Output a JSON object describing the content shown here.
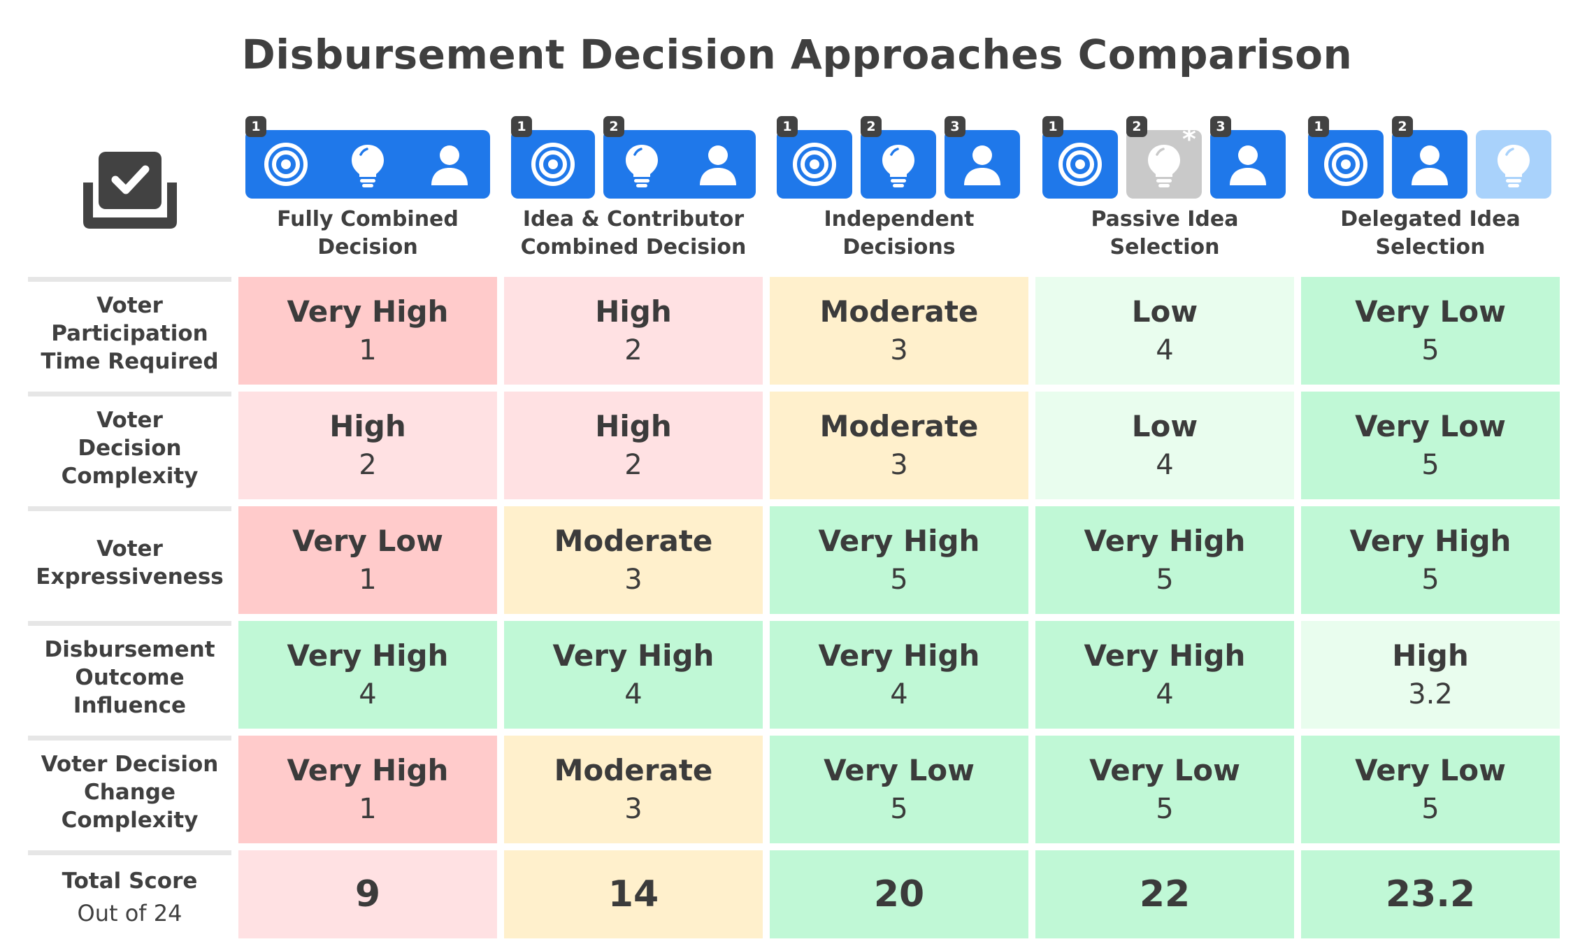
{
  "title": "Disbursement Decision Approaches Comparison",
  "colors": {
    "icon_tile_blue": "#1f78ea",
    "icon_tile_gray": "#c9c9c9",
    "icon_tile_light": "#a9d2fb",
    "badge": "#424242",
    "very_low_score_red": "#ffcbcb",
    "low_score_pink": "#ffe1e3",
    "moderate_yellow": "#fff0cc",
    "high_score_light_green": "#e9fdee",
    "very_high_score_green": "#c0f8d6"
  },
  "corner_icon": "checkbox-tray-icon",
  "columns": [
    {
      "label_line1": "Fully Combined",
      "label_line2": "Decision",
      "tiles": [
        {
          "badge": "1",
          "style": "blue",
          "icons": [
            "target-icon",
            "lightbulb-icon",
            "person-icon"
          ]
        }
      ]
    },
    {
      "label_line1": "Idea & Contributor",
      "label_line2": "Combined Decision",
      "tiles": [
        {
          "badge": "1",
          "style": "blue",
          "icons": [
            "target-icon"
          ]
        },
        {
          "badge": "2",
          "style": "blue",
          "icons": [
            "lightbulb-icon",
            "person-icon"
          ]
        }
      ]
    },
    {
      "label_line1": "Independent",
      "label_line2": "Decisions",
      "tiles": [
        {
          "badge": "1",
          "style": "blue",
          "icons": [
            "target-icon"
          ]
        },
        {
          "badge": "2",
          "style": "blue",
          "icons": [
            "lightbulb-icon"
          ]
        },
        {
          "badge": "3",
          "style": "blue",
          "icons": [
            "person-icon"
          ]
        }
      ]
    },
    {
      "label_line1": "Passive Idea",
      "label_line2": "Selection",
      "tiles": [
        {
          "badge": "1",
          "style": "blue",
          "icons": [
            "target-icon"
          ]
        },
        {
          "badge": "2",
          "style": "gray",
          "icons": [
            "lightbulb-icon"
          ],
          "asterisk": "*"
        },
        {
          "badge": "3",
          "style": "blue",
          "icons": [
            "person-icon"
          ]
        }
      ]
    },
    {
      "label_line1": "Delegated Idea",
      "label_line2": "Selection",
      "tiles": [
        {
          "badge": "1",
          "style": "blue",
          "icons": [
            "target-icon"
          ]
        },
        {
          "badge": "2",
          "style": "blue",
          "icons": [
            "person-icon"
          ]
        },
        {
          "badge": "",
          "style": "light",
          "icons": [
            "lightbulb-icon"
          ]
        }
      ]
    }
  ],
  "rows": [
    {
      "label_lines": [
        "Voter",
        "Participation",
        "Time Required"
      ],
      "cells": [
        {
          "rating": "Very High",
          "score": "1",
          "color": "#ffcbcb"
        },
        {
          "rating": "High",
          "score": "2",
          "color": "#ffe1e3"
        },
        {
          "rating": "Moderate",
          "score": "3",
          "color": "#fff0cc"
        },
        {
          "rating": "Low",
          "score": "4",
          "color": "#e9fdee"
        },
        {
          "rating": "Very Low",
          "score": "5",
          "color": "#c0f8d6"
        }
      ]
    },
    {
      "label_lines": [
        "Voter",
        "Decision",
        "Complexity"
      ],
      "cells": [
        {
          "rating": "High",
          "score": "2",
          "color": "#ffe1e3"
        },
        {
          "rating": "High",
          "score": "2",
          "color": "#ffe1e3"
        },
        {
          "rating": "Moderate",
          "score": "3",
          "color": "#fff0cc"
        },
        {
          "rating": "Low",
          "score": "4",
          "color": "#e9fdee"
        },
        {
          "rating": "Very Low",
          "score": "5",
          "color": "#c0f8d6"
        }
      ]
    },
    {
      "label_lines": [
        "Voter",
        "Expressiveness"
      ],
      "cells": [
        {
          "rating": "Very Low",
          "score": "1",
          "color": "#ffcbcb"
        },
        {
          "rating": "Moderate",
          "score": "3",
          "color": "#fff0cc"
        },
        {
          "rating": "Very High",
          "score": "5",
          "color": "#c0f8d6"
        },
        {
          "rating": "Very High",
          "score": "5",
          "color": "#c0f8d6"
        },
        {
          "rating": "Very High",
          "score": "5",
          "color": "#c0f8d6"
        }
      ]
    },
    {
      "label_lines": [
        "Disbursement",
        "Outcome",
        "Influence"
      ],
      "cells": [
        {
          "rating": "Very High",
          "score": "4",
          "color": "#c0f8d6"
        },
        {
          "rating": "Very High",
          "score": "4",
          "color": "#c0f8d6"
        },
        {
          "rating": "Very High",
          "score": "4",
          "color": "#c0f8d6"
        },
        {
          "rating": "Very High",
          "score": "4",
          "color": "#c0f8d6"
        },
        {
          "rating": "High",
          "score": "3.2",
          "color": "#e9fdee"
        }
      ]
    },
    {
      "label_lines": [
        "Voter Decision",
        "Change",
        "Complexity"
      ],
      "cells": [
        {
          "rating": "Very High",
          "score": "1",
          "color": "#ffcbcb"
        },
        {
          "rating": "Moderate",
          "score": "3",
          "color": "#fff0cc"
        },
        {
          "rating": "Very Low",
          "score": "5",
          "color": "#c0f8d6"
        },
        {
          "rating": "Very Low",
          "score": "5",
          "color": "#c0f8d6"
        },
        {
          "rating": "Very Low",
          "score": "5",
          "color": "#c0f8d6"
        }
      ]
    }
  ],
  "total": {
    "label": "Total Score",
    "sublabel": "Out of 24",
    "values": [
      {
        "value": "9",
        "color": "#ffe1e3"
      },
      {
        "value": "14",
        "color": "#fff0cc"
      },
      {
        "value": "20",
        "color": "#c0f8d6"
      },
      {
        "value": "22",
        "color": "#c0f8d6"
      },
      {
        "value": "23.2",
        "color": "#c0f8d6"
      }
    ]
  }
}
